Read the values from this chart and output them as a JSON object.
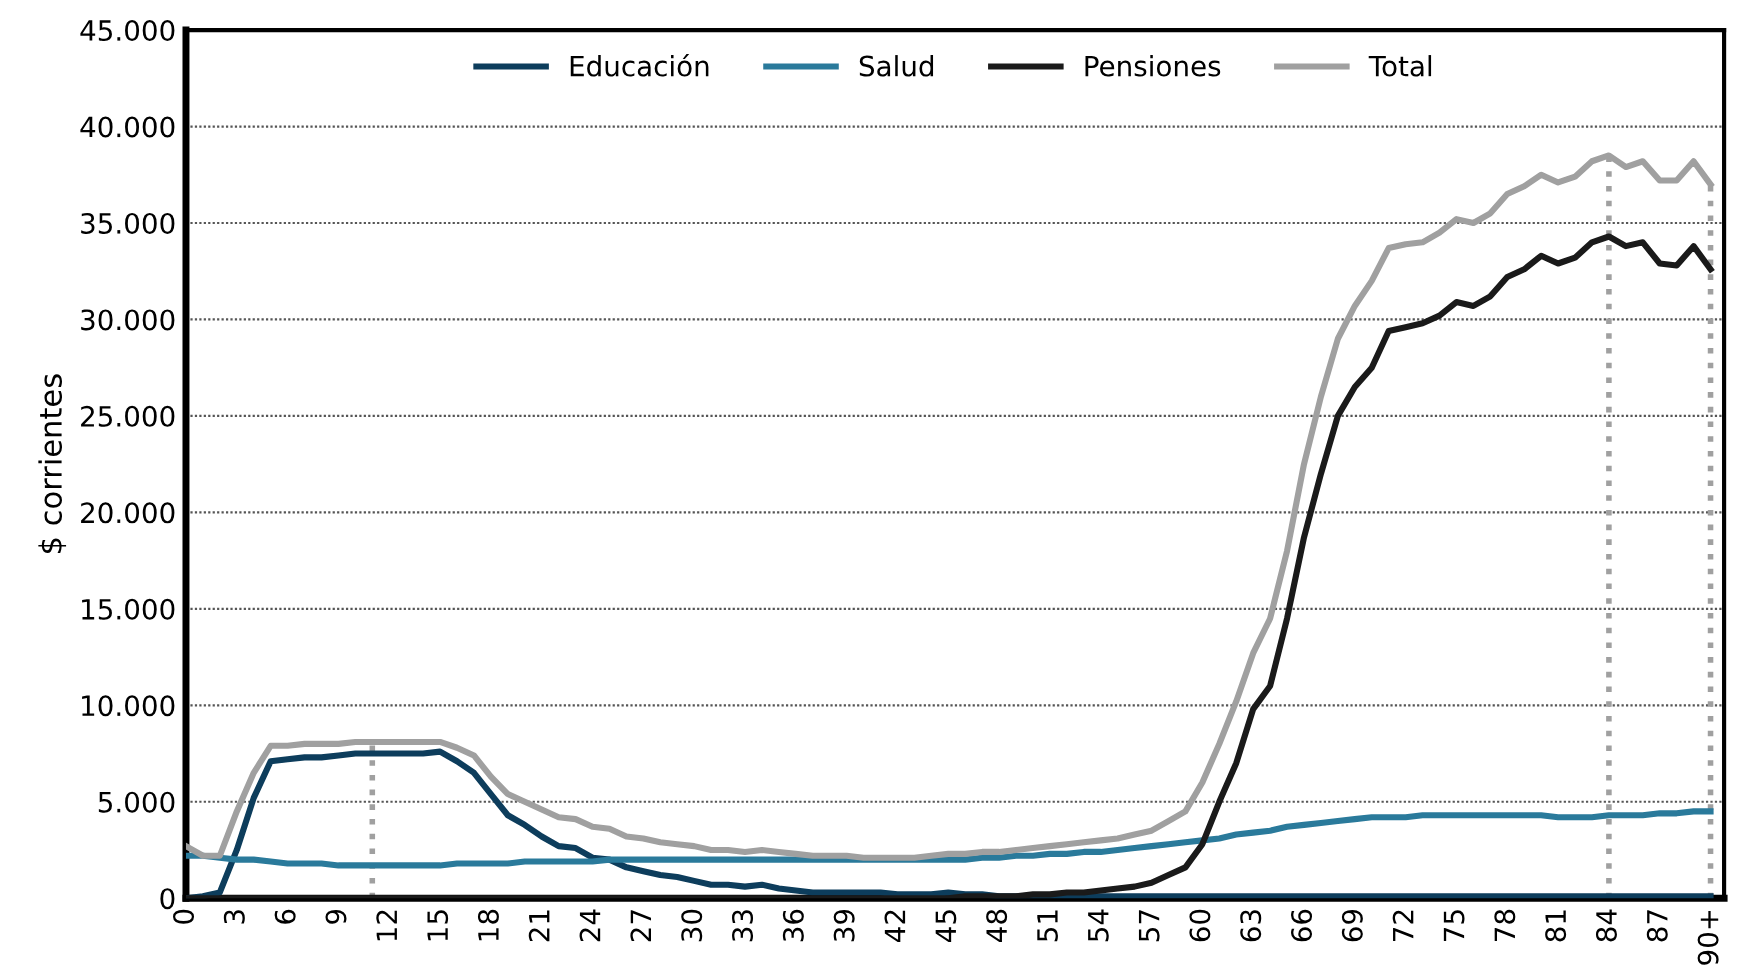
{
  "chart_data": {
    "type": "line",
    "ylabel": "$ corrientes",
    "x": [
      0,
      1,
      2,
      3,
      4,
      5,
      6,
      7,
      8,
      9,
      10,
      11,
      12,
      13,
      14,
      15,
      16,
      17,
      18,
      19,
      20,
      21,
      22,
      23,
      24,
      25,
      26,
      27,
      28,
      29,
      30,
      31,
      32,
      33,
      34,
      35,
      36,
      37,
      38,
      39,
      40,
      41,
      42,
      43,
      44,
      45,
      46,
      47,
      48,
      49,
      50,
      51,
      52,
      53,
      54,
      55,
      56,
      57,
      58,
      59,
      60,
      61,
      62,
      63,
      64,
      65,
      66,
      67,
      68,
      69,
      70,
      71,
      72,
      73,
      74,
      75,
      76,
      77,
      78,
      79,
      80,
      81,
      82,
      83,
      84,
      85,
      86,
      87,
      88,
      89,
      90
    ],
    "series": [
      {
        "name": "Educación",
        "color": "#0d3d5c",
        "values": [
          0,
          100,
          300,
          2500,
          5200,
          7100,
          7200,
          7300,
          7300,
          7400,
          7500,
          7500,
          7500,
          7500,
          7500,
          7600,
          7100,
          6500,
          5400,
          4300,
          3800,
          3200,
          2700,
          2600,
          2100,
          2000,
          1600,
          1400,
          1200,
          1100,
          900,
          700,
          700,
          600,
          700,
          500,
          400,
          300,
          300,
          300,
          300,
          300,
          200,
          200,
          200,
          300,
          200,
          200,
          100,
          100,
          100,
          100,
          100,
          100,
          100,
          100,
          100,
          100,
          100,
          100,
          100,
          100,
          100,
          100,
          100,
          100,
          100,
          100,
          100,
          100,
          100,
          100,
          100,
          100,
          100,
          100,
          100,
          100,
          100,
          100,
          100,
          100,
          100,
          100,
          100,
          100,
          100,
          100,
          100,
          100,
          100
        ]
      },
      {
        "name": "Salud",
        "color": "#2a7a9b",
        "values": [
          2200,
          2200,
          2100,
          2000,
          2000,
          1900,
          1800,
          1800,
          1800,
          1700,
          1700,
          1700,
          1700,
          1700,
          1700,
          1700,
          1800,
          1800,
          1800,
          1800,
          1900,
          1900,
          1900,
          1900,
          1900,
          2000,
          2000,
          2000,
          2000,
          2000,
          2000,
          2000,
          2000,
          2000,
          2000,
          2000,
          2000,
          2000,
          2000,
          2000,
          2000,
          2000,
          2000,
          2000,
          2000,
          2000,
          2000,
          2100,
          2100,
          2200,
          2200,
          2300,
          2300,
          2400,
          2400,
          2500,
          2600,
          2700,
          2800,
          2900,
          3000,
          3100,
          3300,
          3400,
          3500,
          3700,
          3800,
          3900,
          4000,
          4100,
          4200,
          4200,
          4200,
          4300,
          4300,
          4300,
          4300,
          4300,
          4300,
          4300,
          4300,
          4200,
          4200,
          4200,
          4300,
          4300,
          4300,
          4400,
          4400,
          4500,
          4500
        ]
      },
      {
        "name": "Pensiones",
        "color": "#1a1a1a",
        "values": [
          0,
          0,
          0,
          0,
          0,
          0,
          0,
          0,
          0,
          0,
          0,
          0,
          0,
          0,
          0,
          0,
          0,
          0,
          0,
          0,
          0,
          0,
          0,
          0,
          0,
          0,
          0,
          0,
          0,
          0,
          0,
          0,
          0,
          0,
          0,
          0,
          0,
          0,
          0,
          0,
          0,
          0,
          0,
          0,
          0,
          0,
          100,
          100,
          100,
          100,
          200,
          200,
          300,
          300,
          400,
          500,
          600,
          800,
          1200,
          1600,
          2800,
          5000,
          7000,
          9800,
          11000,
          14500,
          18700,
          22000,
          25000,
          26500,
          27500,
          29400,
          29600,
          29800,
          30200,
          30900,
          30700,
          31200,
          32200,
          32600,
          33300,
          32900,
          33200,
          34000,
          34300,
          33800,
          34000,
          32900,
          32800,
          33800,
          32600
        ]
      },
      {
        "name": "Total",
        "color": "#a0a0a0",
        "values": [
          2700,
          2200,
          2200,
          4500,
          6500,
          7900,
          7900,
          8000,
          8000,
          8000,
          8100,
          8100,
          8100,
          8100,
          8100,
          8100,
          7800,
          7400,
          6300,
          5400,
          5000,
          4600,
          4200,
          4100,
          3700,
          3600,
          3200,
          3100,
          2900,
          2800,
          2700,
          2500,
          2500,
          2400,
          2500,
          2400,
          2300,
          2200,
          2200,
          2200,
          2100,
          2100,
          2100,
          2100,
          2200,
          2300,
          2300,
          2400,
          2400,
          2500,
          2600,
          2700,
          2800,
          2900,
          3000,
          3100,
          3300,
          3500,
          4000,
          4500,
          6000,
          8000,
          10200,
          12700,
          14500,
          18000,
          22500,
          26000,
          29000,
          30700,
          32000,
          33700,
          33900,
          34000,
          34500,
          35200,
          35000,
          35500,
          36500,
          36900,
          37500,
          37100,
          37400,
          38200,
          38500,
          37900,
          38200,
          37200,
          37200,
          38200,
          37000
        ]
      }
    ],
    "xlim": [
      0,
      90.8
    ],
    "xticks": [
      0,
      3,
      6,
      9,
      12,
      15,
      18,
      21,
      24,
      27,
      30,
      33,
      36,
      39,
      42,
      45,
      48,
      51,
      54,
      57,
      60,
      63,
      66,
      69,
      72,
      75,
      78,
      81,
      84,
      87,
      {
        "value": 90,
        "label": "90+"
      }
    ],
    "ylim": [
      0,
      45000
    ],
    "yticks": [
      0,
      {
        "value": 5000,
        "label": "5.000"
      },
      {
        "value": 10000,
        "label": "10.000"
      },
      {
        "value": 15000,
        "label": "15.000"
      },
      {
        "value": 20000,
        "label": "20.000"
      },
      {
        "value": 25000,
        "label": "25.000"
      },
      {
        "value": 30000,
        "label": "30.000"
      },
      {
        "value": 35000,
        "label": "35.000"
      },
      {
        "value": 40000,
        "label": "40.000"
      },
      {
        "value": 45000,
        "label": "45.000"
      }
    ],
    "ref_lines": [
      {
        "axis": "x",
        "value": 11,
        "color": "#a0a0a0",
        "line_style": "dotted"
      },
      {
        "axis": "x",
        "value": 84,
        "color": "#a0a0a0",
        "line_style": "dotted"
      },
      {
        "axis": "x",
        "value": 90,
        "color": "#a0a0a0",
        "line_style": "dotted"
      }
    ],
    "grid": "y",
    "legend": "top",
    "marker": "none",
    "line_style": "solid"
  }
}
